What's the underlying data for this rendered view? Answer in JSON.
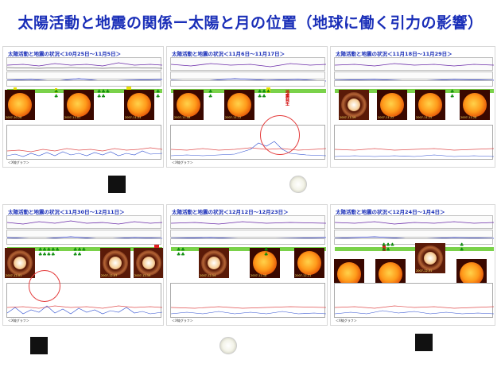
{
  "title": "太陽活動と地震の関係ー太陽と月の位置（地球に働く引力の影響）",
  "panels": [
    {
      "title": "太陽活動と地震の状況＜10月25日～11月5日＞",
      "graph_label": "＜X線グラフ＞",
      "moon": "new"
    },
    {
      "title": "太陽活動と地震の状況＜11月6日～11月17日＞",
      "graph_label": "＜X線グラフ＞",
      "moon": "full",
      "annotation": "地震発生"
    },
    {
      "title": "太陽活動と地震の状況＜11月18日～11月29日＞",
      "graph_label": "",
      "moon": "none"
    },
    {
      "title": "太陽活動と地震の状況＜11月30日～12月11日＞",
      "graph_label": "＜X線グラフ＞",
      "moon": "new"
    },
    {
      "title": "太陽活動と地震の状況＜12月12日～12月23日＞",
      "graph_label": "＜X線グラフ＞",
      "moon": "full"
    },
    {
      "title": "太陽活動と地震の状況＜12月24日～1月4日＞",
      "graph_label": "＜X線グラフ＞",
      "moon": "new"
    }
  ],
  "colors": {
    "title": "#1a2fb8",
    "circle": "#e43b3b"
  }
}
